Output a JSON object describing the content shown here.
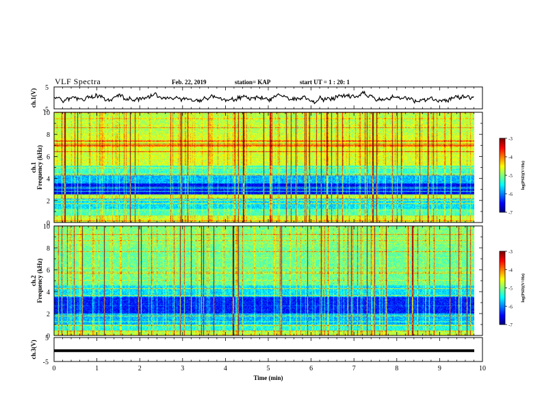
{
  "header": {
    "title": "VLF Spectra",
    "date": "Feb. 22, 2019",
    "station": "station= KAP",
    "start": "start  UT =   1 : 20: 1"
  },
  "chart_data": [
    {
      "type": "line",
      "name": "ch1-waveform",
      "ylabel": "ch.1(V)",
      "ylim": [
        -5,
        5
      ],
      "yticks": [
        "5",
        "-5"
      ],
      "xlim": [
        0,
        10
      ]
    },
    {
      "type": "heatmap",
      "name": "ch1-spectrogram",
      "ylabel": "ch.1\nFrequency  (kHz)",
      "ylim": [
        0,
        10
      ],
      "yticks": [
        "0",
        "2",
        "4",
        "6",
        "8",
        "10"
      ],
      "xlim": [
        0,
        10
      ],
      "colorbar": {
        "label": "log(PSD)(V²/Hz)",
        "range": [
          -7,
          -3
        ],
        "ticks": [
          "-3",
          "-4",
          "-5",
          "-6",
          "-7"
        ]
      }
    },
    {
      "type": "heatmap",
      "name": "ch2-spectrogram",
      "ylabel": "ch.2\nFrequency  (kHz)",
      "ylim": [
        0,
        10
      ],
      "yticks": [
        "0",
        "2",
        "4",
        "6",
        "8",
        "10"
      ],
      "xlim": [
        0,
        10
      ],
      "colorbar": {
        "label": "log(PSD)(V²/Hz)",
        "range": [
          -7,
          -3
        ],
        "ticks": [
          "-3",
          "-4",
          "-5",
          "-6",
          "-7"
        ]
      }
    },
    {
      "type": "line",
      "name": "ch3-waveform",
      "ylabel": "ch.3(V)",
      "ylim": [
        -5,
        5
      ],
      "yticks": [
        "5",
        "-5"
      ],
      "xlim": [
        0,
        10
      ],
      "xlabel": "Time  (min)",
      "xticks": [
        "0",
        "1",
        "2",
        "3",
        "4",
        "5",
        "6",
        "7",
        "8",
        "9",
        "10"
      ]
    }
  ]
}
